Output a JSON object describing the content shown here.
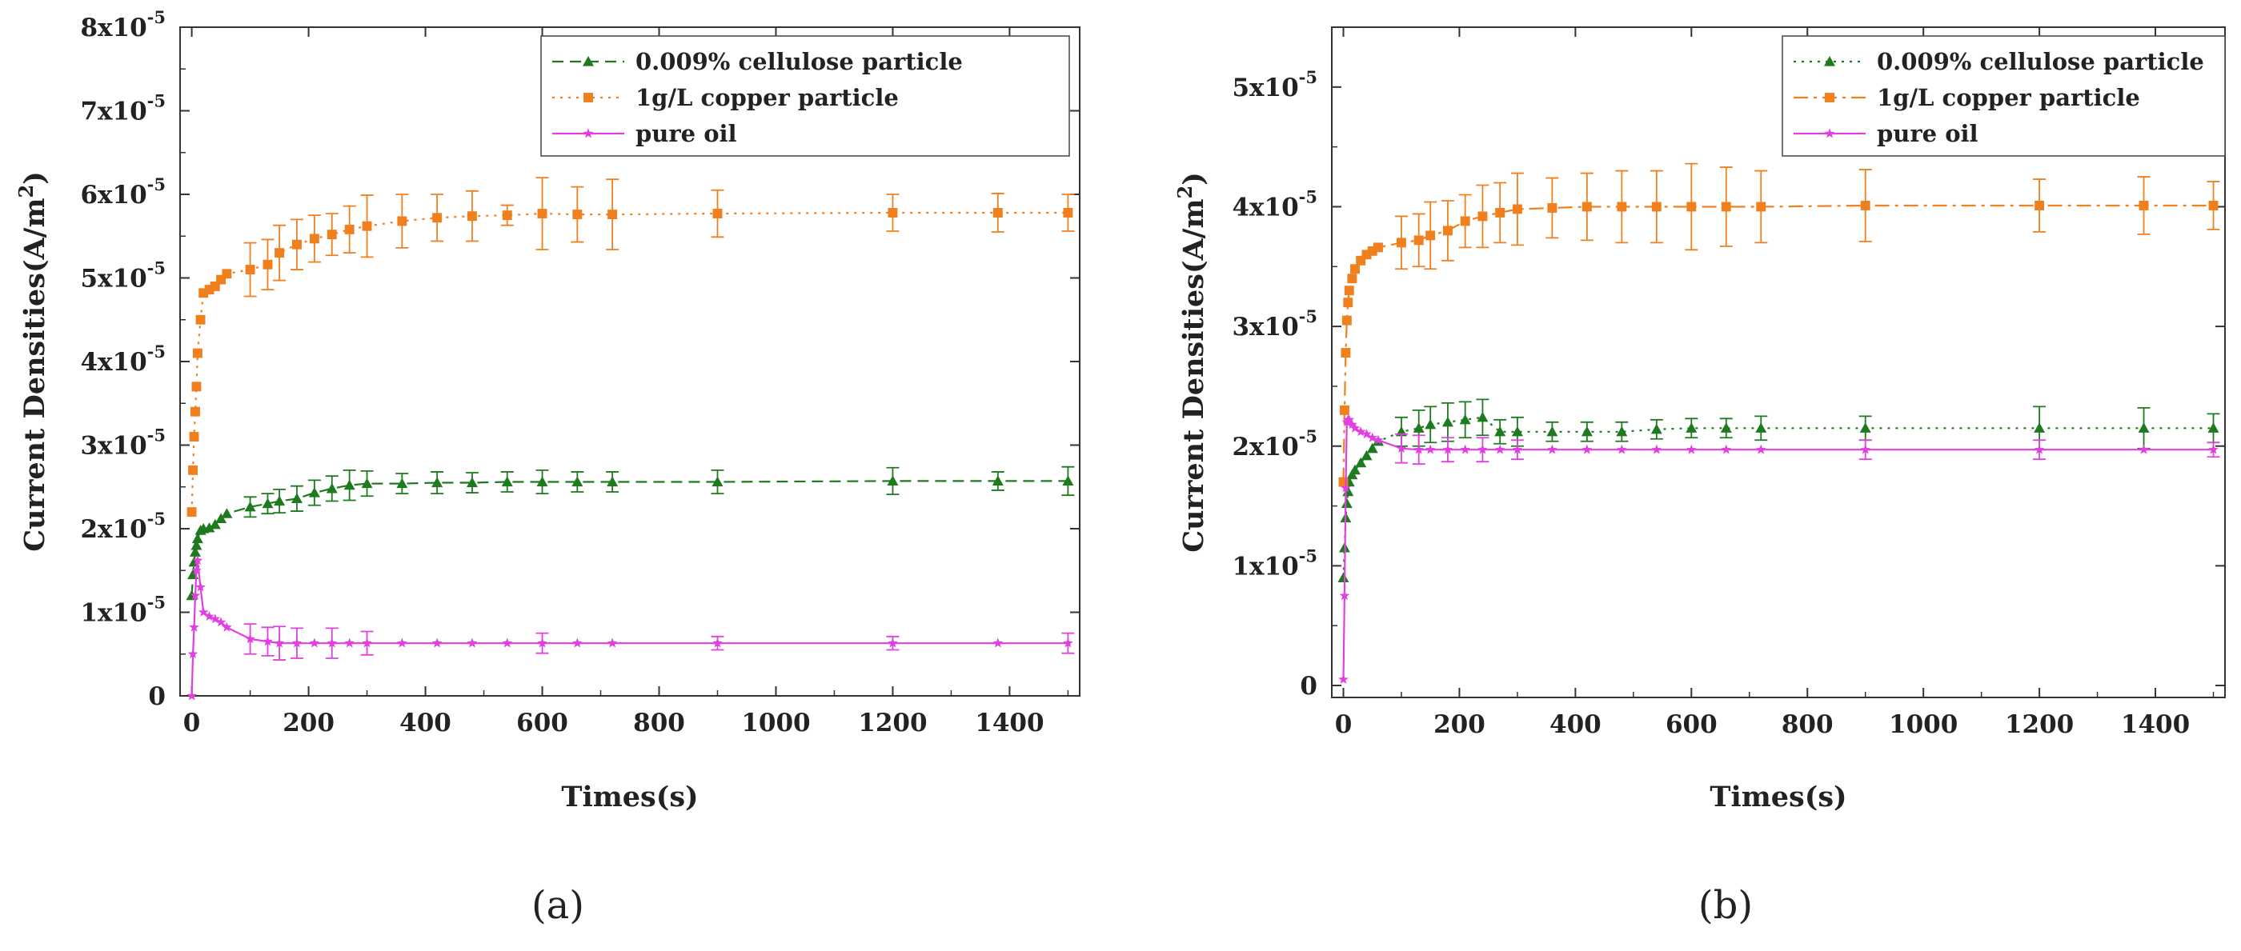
{
  "chart_data": [
    {
      "type": "line",
      "panel_label": "(a)",
      "xlabel": "Times(s)",
      "ylabel": "Current Densities(A/m²)",
      "ylabel_parts": {
        "base": "Current Densities(A/m",
        "sup": "2",
        "end": ")"
      },
      "xlim": [
        -20,
        1520
      ],
      "ylim": [
        0,
        8
      ],
      "y_scale_note": "values in units of 1x10^-5 A/m²",
      "x_ticks": [
        {
          "v": 0,
          "label": "0"
        },
        {
          "v": 200,
          "label": "200"
        },
        {
          "v": 400,
          "label": "400"
        },
        {
          "v": 600,
          "label": "600"
        },
        {
          "v": 800,
          "label": "800"
        },
        {
          "v": 1000,
          "label": "1000"
        },
        {
          "v": 1200,
          "label": "1200"
        },
        {
          "v": 1400,
          "label": "1400"
        }
      ],
      "y_ticks": [
        {
          "v": 0,
          "label": "0",
          "exp": ""
        },
        {
          "v": 1,
          "label": "1x10",
          "exp": "-5"
        },
        {
          "v": 2,
          "label": "2x10",
          "exp": "-5"
        },
        {
          "v": 3,
          "label": "3x10",
          "exp": "-5"
        },
        {
          "v": 4,
          "label": "4x10",
          "exp": "-5"
        },
        {
          "v": 5,
          "label": "5x10",
          "exp": "-5"
        },
        {
          "v": 6,
          "label": "6x10",
          "exp": "-5"
        },
        {
          "v": 7,
          "label": "7x10",
          "exp": "-5"
        },
        {
          "v": 8,
          "label": "8x10",
          "exp": "-5"
        }
      ],
      "legend": {
        "placement": "top-right"
      },
      "series": [
        {
          "name": "0.009% cellulose particle",
          "color": "#1e7a1e",
          "marker": "triangle",
          "dash": "dash",
          "x": [
            0,
            2,
            4,
            6,
            8,
            10,
            15,
            20,
            30,
            40,
            50,
            60,
            100,
            130,
            150,
            180,
            210,
            240,
            270,
            300,
            360,
            420,
            480,
            540,
            600,
            660,
            720,
            900,
            1200,
            1380,
            1500
          ],
          "y": [
            1.2,
            1.45,
            1.6,
            1.72,
            1.8,
            1.88,
            1.98,
            2.0,
            2.01,
            2.05,
            2.12,
            2.18,
            2.26,
            2.3,
            2.33,
            2.36,
            2.43,
            2.48,
            2.52,
            2.54,
            2.54,
            2.55,
            2.55,
            2.56,
            2.56,
            2.56,
            2.56,
            2.56,
            2.57,
            2.57,
            2.57
          ],
          "err": [
            0,
            0,
            0,
            0,
            0,
            0,
            0,
            0,
            0,
            0,
            0,
            0,
            0.12,
            0.12,
            0.14,
            0.15,
            0.15,
            0.15,
            0.18,
            0.15,
            0.12,
            0.13,
            0.12,
            0.12,
            0.14,
            0.12,
            0.12,
            0.14,
            0.16,
            0.11,
            0.17
          ]
        },
        {
          "name": "1g/L copper particle",
          "color": "#f07f1e",
          "marker": "square",
          "dash": "dot",
          "x": [
            0,
            2,
            4,
            6,
            8,
            10,
            15,
            20,
            30,
            40,
            50,
            60,
            100,
            130,
            150,
            180,
            210,
            240,
            270,
            300,
            360,
            420,
            480,
            540,
            600,
            660,
            720,
            900,
            1200,
            1380,
            1500
          ],
          "y": [
            2.2,
            2.7,
            3.1,
            3.4,
            3.7,
            4.1,
            4.5,
            4.82,
            4.86,
            4.9,
            4.98,
            5.05,
            5.1,
            5.16,
            5.3,
            5.4,
            5.47,
            5.52,
            5.58,
            5.62,
            5.68,
            5.72,
            5.74,
            5.75,
            5.77,
            5.76,
            5.76,
            5.77,
            5.78,
            5.78,
            5.78
          ],
          "err": [
            0,
            0,
            0,
            0,
            0,
            0,
            0,
            0,
            0,
            0,
            0,
            0,
            0.32,
            0.3,
            0.33,
            0.3,
            0.28,
            0.25,
            0.28,
            0.37,
            0.32,
            0.28,
            0.3,
            0.12,
            0.43,
            0.33,
            0.42,
            0.28,
            0.22,
            0.23,
            0.22
          ]
        },
        {
          "name": "pure oil",
          "color": "#e040e0",
          "marker": "star",
          "dash": "solid",
          "x": [
            0,
            2,
            4,
            6,
            8,
            10,
            15,
            20,
            30,
            40,
            50,
            60,
            100,
            130,
            150,
            180,
            210,
            240,
            270,
            300,
            360,
            420,
            480,
            540,
            600,
            660,
            720,
            900,
            1200,
            1380,
            1500
          ],
          "y": [
            0.0,
            0.5,
            0.82,
            1.2,
            1.5,
            1.62,
            1.3,
            1.0,
            0.95,
            0.92,
            0.88,
            0.82,
            0.68,
            0.65,
            0.63,
            0.63,
            0.63,
            0.63,
            0.63,
            0.63,
            0.63,
            0.63,
            0.63,
            0.63,
            0.63,
            0.63,
            0.63,
            0.63,
            0.63,
            0.63,
            0.63
          ],
          "err": [
            0,
            0,
            0,
            0,
            0,
            0,
            0,
            0,
            0,
            0,
            0,
            0,
            0.18,
            0.17,
            0.2,
            0.18,
            0,
            0.18,
            0,
            0.14,
            0,
            0,
            0,
            0,
            0.12,
            0,
            0,
            0.08,
            0.08,
            0,
            0.12
          ]
        }
      ]
    },
    {
      "type": "line",
      "panel_label": "(b)",
      "xlabel": "Times(s)",
      "ylabel": "Current Densities(A/m²)",
      "ylabel_parts": {
        "base": "Current Densities(A/m",
        "sup": "2",
        "end": ")"
      },
      "xlim": [
        -20,
        1520
      ],
      "ylim": [
        -0.1,
        5.5
      ],
      "y_scale_note": "values in units of 1x10^-5 A/m²",
      "x_ticks": [
        {
          "v": 0,
          "label": "0"
        },
        {
          "v": 200,
          "label": "200"
        },
        {
          "v": 400,
          "label": "400"
        },
        {
          "v": 600,
          "label": "600"
        },
        {
          "v": 800,
          "label": "800"
        },
        {
          "v": 1000,
          "label": "1000"
        },
        {
          "v": 1200,
          "label": "1200"
        },
        {
          "v": 1400,
          "label": "1400"
        }
      ],
      "y_ticks": [
        {
          "v": 0,
          "label": "0",
          "exp": ""
        },
        {
          "v": 1,
          "label": "1x10",
          "exp": "-5"
        },
        {
          "v": 2,
          "label": "2x10",
          "exp": "-5"
        },
        {
          "v": 3,
          "label": "3x10",
          "exp": "-5"
        },
        {
          "v": 4,
          "label": "4x10",
          "exp": "-5"
        },
        {
          "v": 5,
          "label": "5x10",
          "exp": "-5"
        }
      ],
      "legend": {
        "placement": "top-right"
      },
      "series": [
        {
          "name": "0.009% cellulose particle",
          "color": "#1e7a1e",
          "marker": "triangle",
          "dash": "dot",
          "x": [
            0,
            2,
            4,
            6,
            8,
            10,
            15,
            20,
            30,
            40,
            50,
            60,
            100,
            130,
            150,
            180,
            210,
            240,
            270,
            300,
            360,
            420,
            480,
            540,
            600,
            660,
            720,
            900,
            1200,
            1380,
            1500
          ],
          "y": [
            0.9,
            1.15,
            1.4,
            1.52,
            1.62,
            1.7,
            1.76,
            1.8,
            1.86,
            1.92,
            1.98,
            2.04,
            2.12,
            2.15,
            2.18,
            2.2,
            2.22,
            2.24,
            2.12,
            2.12,
            2.12,
            2.12,
            2.12,
            2.14,
            2.15,
            2.15,
            2.15,
            2.15,
            2.15,
            2.15,
            2.15
          ],
          "err": [
            0,
            0,
            0,
            0,
            0,
            0,
            0,
            0,
            0,
            0,
            0,
            0,
            0.12,
            0.15,
            0.15,
            0.16,
            0.15,
            0.15,
            0.1,
            0.12,
            0.08,
            0.08,
            0.08,
            0.08,
            0.08,
            0.08,
            0.1,
            0.1,
            0.18,
            0.17,
            0.12
          ]
        },
        {
          "name": "1g/L copper particle",
          "color": "#f07f1e",
          "marker": "square",
          "dash": "dashdot",
          "x": [
            0,
            2,
            4,
            6,
            8,
            10,
            15,
            20,
            30,
            40,
            50,
            60,
            100,
            130,
            150,
            180,
            210,
            240,
            270,
            300,
            360,
            420,
            480,
            540,
            600,
            660,
            720,
            900,
            1200,
            1380,
            1500
          ],
          "y": [
            1.7,
            2.3,
            2.78,
            3.05,
            3.2,
            3.3,
            3.4,
            3.48,
            3.55,
            3.6,
            3.63,
            3.66,
            3.7,
            3.72,
            3.76,
            3.8,
            3.88,
            3.92,
            3.95,
            3.98,
            3.99,
            4.0,
            4.0,
            4.0,
            4.0,
            4.0,
            4.0,
            4.01,
            4.01,
            4.01,
            4.01
          ],
          "err": [
            0,
            0,
            0,
            0,
            0,
            0,
            0,
            0,
            0,
            0,
            0,
            0,
            0.22,
            0.22,
            0.28,
            0.25,
            0.22,
            0.26,
            0.25,
            0.3,
            0.25,
            0.28,
            0.3,
            0.3,
            0.36,
            0.33,
            0.3,
            0.3,
            0.22,
            0.24,
            0.2
          ]
        },
        {
          "name": "pure oil",
          "color": "#e040e0",
          "marker": "star",
          "dash": "solid",
          "x": [
            0,
            2,
            4,
            6,
            8,
            10,
            15,
            20,
            30,
            40,
            50,
            60,
            100,
            130,
            150,
            180,
            210,
            240,
            270,
            300,
            360,
            420,
            480,
            540,
            600,
            660,
            720,
            900,
            1200,
            1380,
            1500
          ],
          "y": [
            0.05,
            0.75,
            1.65,
            2.2,
            2.22,
            2.22,
            2.18,
            2.15,
            2.12,
            2.1,
            2.07,
            2.05,
            1.98,
            1.97,
            1.97,
            1.97,
            1.97,
            1.97,
            1.97,
            1.97,
            1.97,
            1.97,
            1.97,
            1.97,
            1.97,
            1.97,
            1.97,
            1.97,
            1.97,
            1.97,
            1.97
          ],
          "err": [
            0,
            0,
            0,
            0,
            0,
            0,
            0,
            0,
            0,
            0,
            0,
            0,
            0.12,
            0.12,
            0,
            0.1,
            0,
            0.1,
            0,
            0.08,
            0,
            0,
            0,
            0,
            0,
            0,
            0,
            0.08,
            0.08,
            0,
            0.06
          ]
        }
      ]
    }
  ]
}
